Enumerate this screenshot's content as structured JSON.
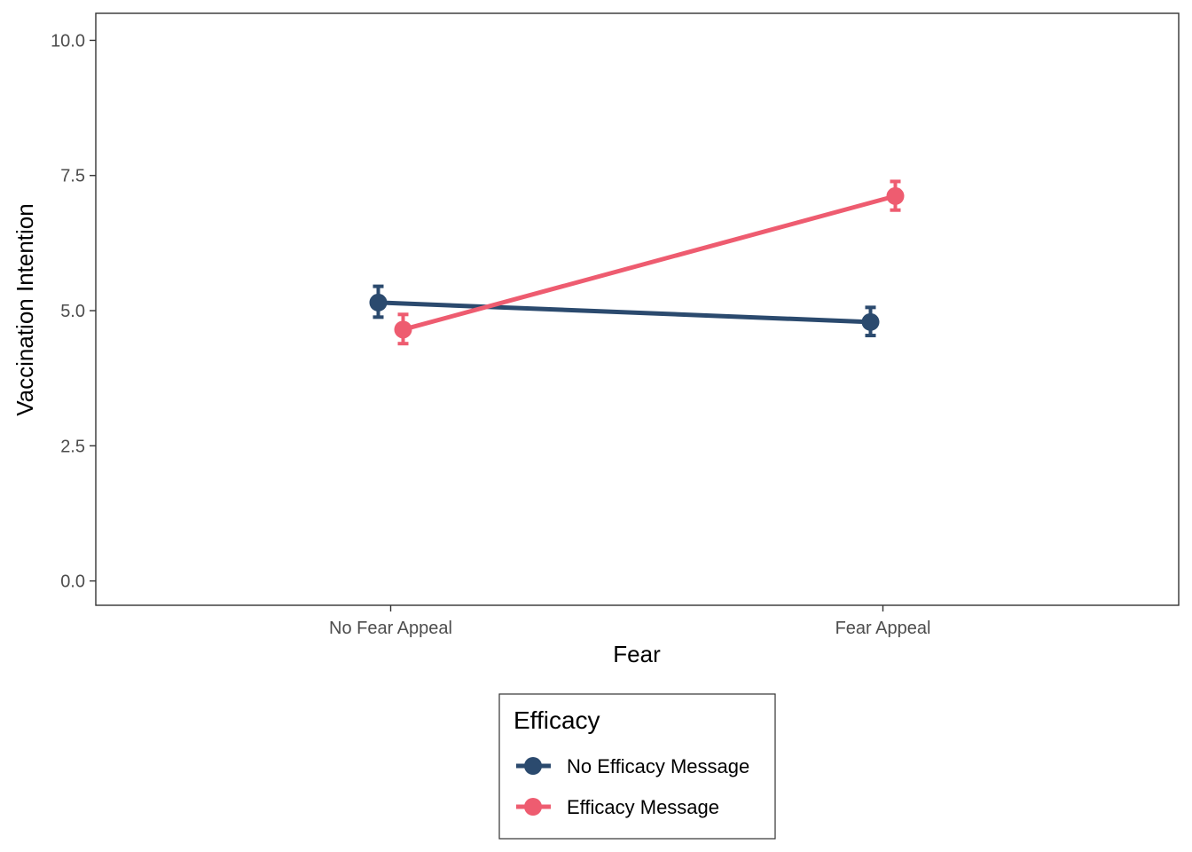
{
  "chart_data": {
    "type": "line",
    "xlabel": "Fear",
    "ylabel": "Vaccination Intention",
    "categories": [
      "No Fear Appeal",
      "Fear Appeal"
    ],
    "ylim": [
      -0.45,
      10.5
    ],
    "yticks": [
      0.0,
      2.5,
      5.0,
      7.5,
      10.0
    ],
    "ytick_labels": [
      "0.0",
      "2.5",
      "5.0",
      "7.5",
      "10.0"
    ],
    "grid": false,
    "legend": {
      "title": "Efficacy",
      "placement": "bottom"
    },
    "series": [
      {
        "name": "No Efficacy Message",
        "color": "#2b4a6e",
        "values": [
          5.15,
          4.79
        ],
        "lower": [
          4.88,
          4.54
        ],
        "upper": [
          5.45,
          5.06
        ]
      },
      {
        "name": "Efficacy Message",
        "color": "#ee5c70",
        "values": [
          4.65,
          7.12
        ],
        "lower": [
          4.39,
          6.86
        ],
        "upper": [
          4.93,
          7.39
        ]
      }
    ]
  }
}
